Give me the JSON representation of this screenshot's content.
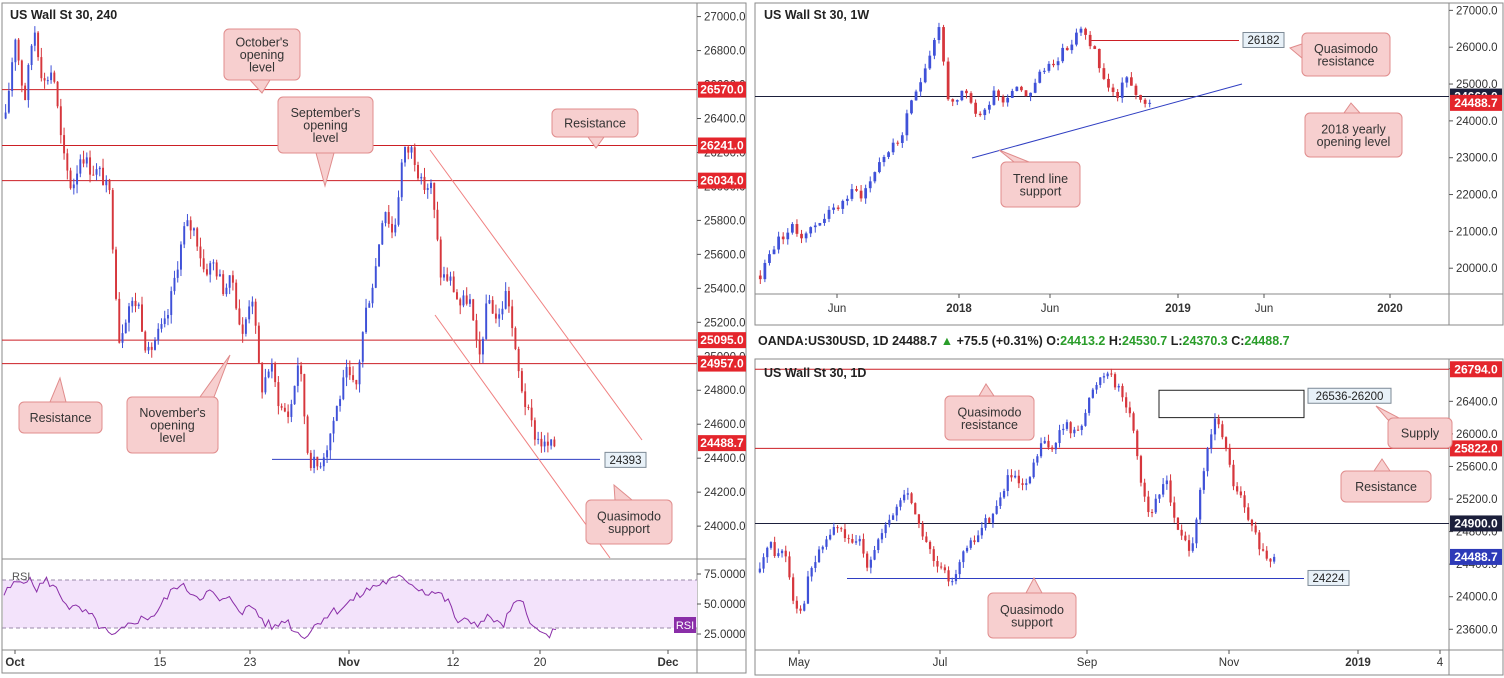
{
  "colors": {
    "bull": "#3f51d8",
    "bear": "#d6363c",
    "resistance_line": "#cc1f25",
    "support_line": "#2f3ec2",
    "label_red_bg": "#e4252c",
    "label_blue_bg": "#2d3ab8",
    "label_dark_bg": "#1b1f3b",
    "callout_bg": "#f7cfcf",
    "callout_border": "#e08c8c",
    "rsi_fill": "#f3e3fb",
    "rsi_line": "#8a2ea8"
  },
  "chart_data": [
    {
      "id": "h4",
      "type": "candlestick",
      "title": "US Wall St 30, 240",
      "y_ticks": [
        "27000.0",
        "26800.0",
        "26600.0",
        "26400.0",
        "26200.0",
        "26000.0",
        "25800.0",
        "25600.0",
        "25400.0",
        "25200.0",
        "25000.0",
        "24800.0",
        "24600.0",
        "24400.0",
        "24200.0",
        "24000.0"
      ],
      "ylim": [
        23830,
        27080
      ],
      "x_ticks": [
        "Oct",
        "15",
        "23",
        "Nov",
        "12",
        "20",
        "Dec"
      ],
      "levels": [
        {
          "value": 26570.0,
          "label": "26570.0",
          "kind": "resistance"
        },
        {
          "value": 26241.0,
          "label": "26241.0",
          "kind": "resistance"
        },
        {
          "value": 26034.0,
          "label": "26034.0",
          "kind": "resistance"
        },
        {
          "value": 25095.0,
          "label": "25095.0",
          "kind": "resistance"
        },
        {
          "value": 24957.0,
          "label": "24957.0",
          "kind": "resistance"
        },
        {
          "value": 24393,
          "label": "24393",
          "kind": "support_segment"
        }
      ],
      "current_price": "24488.7",
      "callouts": [
        "October's opening level",
        "September's opening level",
        "Resistance",
        "Resistance",
        "November's opening level",
        "Quasimodo support"
      ],
      "path": [
        26400,
        26900,
        26500,
        26950,
        26600,
        26700,
        26200,
        25980,
        26200,
        26100,
        26080,
        25950,
        25100,
        25300,
        25320,
        25000,
        25120,
        25200,
        25500,
        25780,
        25740,
        25500,
        25550,
        25400,
        25450,
        25100,
        25400,
        24800,
        24960,
        24700,
        24650,
        25000,
        24400,
        24350,
        24480,
        24700,
        24900,
        24800,
        25250,
        25480,
        25900,
        25700,
        26200,
        26220,
        26000,
        26000,
        25480,
        25450,
        25300,
        25350,
        24960,
        25350,
        25200,
        25400,
        24960,
        24700,
        24530,
        24470,
        24470
      ],
      "rsi": {
        "label": "RSI",
        "y_ticks": [
          "75.0000",
          "50.0000",
          "25.0000"
        ],
        "ylim": [
          15,
          85
        ],
        "bands": [
          70,
          30
        ],
        "current_label": "RSI",
        "values": [
          58,
          67,
          72,
          63,
          70,
          60,
          48,
          45,
          40,
          30,
          22,
          28,
          36,
          38,
          42,
          55,
          66,
          62,
          56,
          60,
          52,
          54,
          44,
          48,
          35,
          30,
          38,
          26,
          24,
          35,
          42,
          46,
          52,
          58,
          64,
          68,
          70,
          72,
          65,
          60,
          60,
          52,
          34,
          36,
          34,
          40,
          30,
          48,
          52,
          28,
          24,
          26
        ]
      }
    },
    {
      "id": "weekly",
      "type": "candlestick",
      "title": "US Wall St 30, 1W",
      "y_ticks": [
        "27000.0",
        "26000.0",
        "25000.0",
        "24000.0",
        "23000.0",
        "22000.0",
        "21000.0",
        "20000.0"
      ],
      "ylim": [
        19300,
        27200
      ],
      "x_ticks": [
        "Jun",
        "2018",
        "Jun",
        "2019",
        "Jun",
        "2020"
      ],
      "levels": [
        {
          "value": 26182,
          "label": "26182",
          "kind": "quasimodo_segment"
        },
        {
          "value": 24660.0,
          "label": "24660.0",
          "kind": "yearly_open"
        }
      ],
      "current_price": "24488.7",
      "callouts": [
        "Quasimodo resistance",
        "2018 yearly opening level",
        "Trend line support"
      ],
      "path": [
        19800,
        20300,
        20700,
        20900,
        21100,
        20900,
        21000,
        21150,
        21400,
        21500,
        21700,
        21900,
        22100,
        22000,
        22300,
        22800,
        23100,
        23300,
        23500,
        24200,
        24800,
        25400,
        26000,
        26600,
        24700,
        24300,
        24800,
        24500,
        24100,
        24300,
        24900,
        24500,
        24800,
        25000,
        24700,
        24900,
        25300,
        25500,
        25700,
        25900,
        26100,
        26500,
        26200,
        25900,
        25100,
        24900,
        24600,
        25300,
        24700,
        24400,
        24488.7
      ]
    },
    {
      "id": "daily",
      "type": "candlestick",
      "title": "US Wall St 30, 1D",
      "symbol_header": {
        "symbol": "OANDA:US30USD, 1D",
        "last": "24488.7",
        "change": "+75.5 (+0.31%)",
        "o_label": "O:",
        "o": "24413.2",
        "h_label": "H:",
        "h": "24530.7",
        "l_label": "L:",
        "l": "24370.3",
        "c_label": "C:",
        "c": "24488.7"
      },
      "y_ticks": [
        "26800.0",
        "26400.0",
        "26000.0",
        "25600.0",
        "25200.0",
        "24800.0",
        "24400.0",
        "24000.0",
        "23600.0"
      ],
      "ylim": [
        23370,
        26920
      ],
      "x_ticks": [
        "May",
        "Jul",
        "Sep",
        "Nov",
        "2019",
        "4"
      ],
      "levels": [
        {
          "value": 26794.0,
          "label": "26794.0",
          "kind": "resistance"
        },
        {
          "value": 25822.0,
          "label": "25822.0",
          "kind": "resistance"
        },
        {
          "value": 24900.0,
          "label": "24900.0",
          "kind": "open_level"
        },
        {
          "value": 24224,
          "label": "24224",
          "kind": "support_segment"
        }
      ],
      "zone": {
        "top": 26536,
        "bottom": 26200,
        "label": "26536-26200"
      },
      "current_price": "24488.7",
      "callouts": [
        "Quasimodo resistance",
        "Supply",
        "Resistance",
        "Quasimodo support"
      ],
      "path": [
        24300,
        24700,
        24500,
        24600,
        24000,
        23800,
        24300,
        24500,
        24700,
        24850,
        24800,
        24600,
        24700,
        24400,
        24650,
        24800,
        25000,
        25200,
        25300,
        24900,
        24700,
        24400,
        24300,
        24200,
        24400,
        24600,
        24700,
        24900,
        25000,
        25200,
        25500,
        25400,
        25300,
        25600,
        25900,
        25800,
        26000,
        26100,
        26000,
        26200,
        26500,
        26700,
        26800,
        26600,
        26400,
        26100,
        25400,
        25000,
        25200,
        25500,
        24900,
        24700,
        24600,
        25200,
        25800,
        26200,
        25900,
        25400,
        25200,
        24900,
        24700,
        24400,
        24488.7
      ]
    }
  ]
}
